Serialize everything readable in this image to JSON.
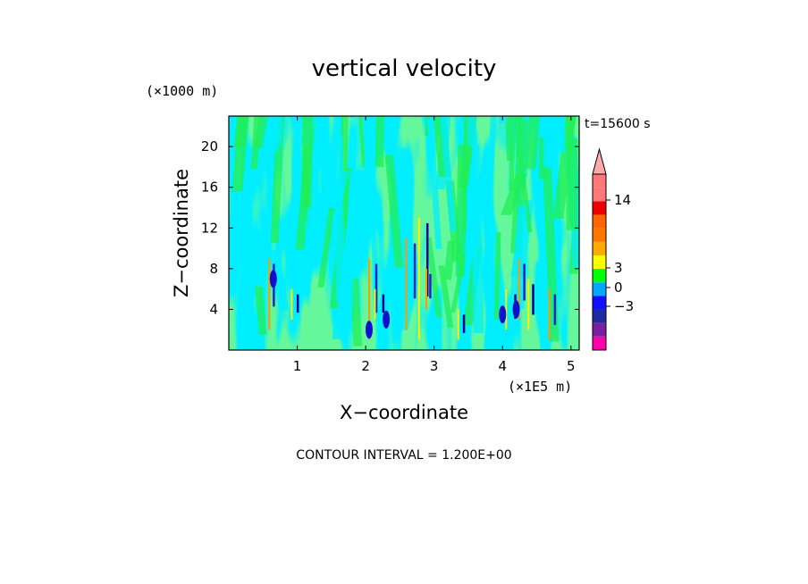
{
  "chart_data": {
    "type": "heatmap",
    "title": "vertical velocity",
    "xlabel": "X−coordinate",
    "ylabel": "Z−coordinate",
    "x_unit": "(×1E5 m)",
    "y_unit": "(×1000 m)",
    "time_label": "t=15600 s",
    "footer": "CONTOUR INTERVAL = 1.200E+00",
    "xlim": [
      0,
      5.12
    ],
    "ylim": [
      0,
      23
    ],
    "x_ticks": [
      1,
      2,
      3,
      4,
      5
    ],
    "x_tick_labels": [
      "1",
      "2",
      "3",
      "4",
      "5"
    ],
    "y_ticks": [
      4,
      8,
      12,
      16,
      20
    ],
    "y_tick_labels": [
      "4",
      "8",
      "12",
      "16",
      "20"
    ],
    "colorbar": {
      "colors": [
        "#ff00aa",
        "#7a1fa0",
        "#1f2aa0",
        "#1010ff",
        "#00a8ff",
        "#00ff00",
        "#ffff00",
        "#ffaa00",
        "#ff7700",
        "#ff6600",
        "#ee0000",
        "#ff7777",
        "#ffaaaa"
      ],
      "tick_labels": [
        "14",
        "3",
        "0",
        "−3"
      ],
      "tick_values": [
        14,
        3,
        0,
        -3
      ]
    },
    "background_color": "#00eeff",
    "dominant_colors": [
      "#00eeff",
      "#22ee55"
    ],
    "updraft_colors": [
      "#ffee00",
      "#ff9900"
    ],
    "downdraft_colors": [
      "#2222cc",
      "#000099"
    ]
  }
}
